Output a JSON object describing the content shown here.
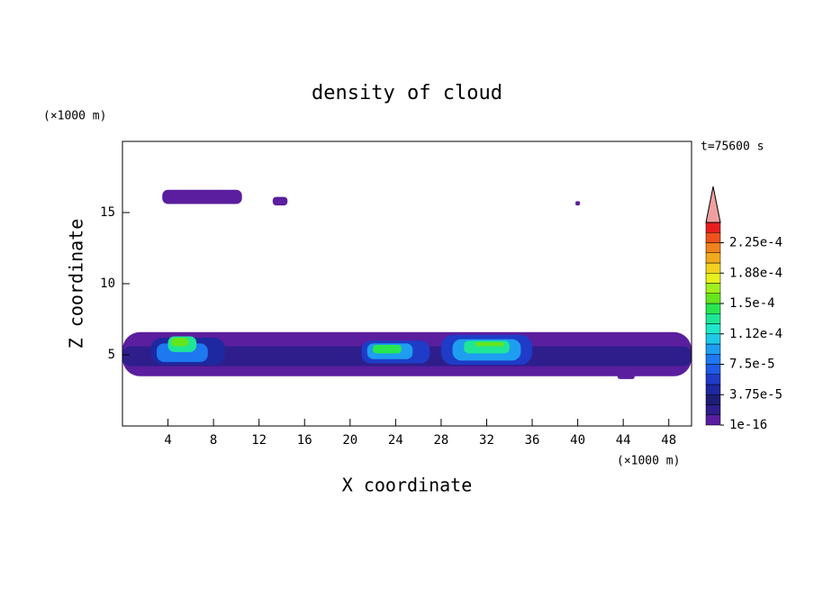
{
  "chart_data": {
    "type": "contour",
    "title": "density of cloud",
    "xlabel": "X coordinate",
    "ylabel": "Z coordinate",
    "x_unit": "(×1000 m)",
    "y_unit": "(×1000 m)",
    "time_label": "t=75600 s",
    "xlim": [
      0,
      50
    ],
    "ylim": [
      0,
      20
    ],
    "xticks": [
      4,
      8,
      12,
      16,
      20,
      24,
      28,
      32,
      36,
      40,
      44,
      48
    ],
    "yticks": [
      5,
      10,
      15
    ],
    "colorbar": {
      "lim": [
        0,
        0.00025
      ],
      "step": 1.25e-05,
      "colors": [
        "#5a1e9e",
        "#2e1e8c",
        "#1e1e78",
        "#1e28a0",
        "#1e3cc8",
        "#1e5ae6",
        "#1e78f0",
        "#1e9ef0",
        "#1ec8e6",
        "#1ee6c8",
        "#1ee696",
        "#28e650",
        "#64e61e",
        "#a0f01e",
        "#e6f01e",
        "#f0d21e",
        "#f0aa1e",
        "#f0821e",
        "#f0501e",
        "#e61e1e"
      ],
      "extend_color": "#f0a0a0",
      "ticks": [
        1e-16,
        {
          "value": 3.75e-05,
          "label": "3.75e-5"
        },
        {
          "value": 7.5e-05,
          "label": "7.5e-5"
        },
        {
          "value": 0.0001125,
          "label": "1.12e-4"
        },
        {
          "value": 0.00015,
          "label": "1.5e-4"
        },
        {
          "value": 0.0001875,
          "label": "1.88e-4"
        },
        {
          "value": 0.000225,
          "label": "2.25e-4"
        }
      ]
    },
    "regions": [
      {
        "x": [
          3.5,
          10.5
        ],
        "z": [
          15.6,
          16.6
        ],
        "value": 5e-06
      },
      {
        "x": [
          13.2,
          14.5
        ],
        "z": [
          15.5,
          16.1
        ],
        "value": 5e-06
      },
      {
        "x": [
          39.8,
          40.2
        ],
        "z": [
          15.5,
          15.8
        ],
        "value": 5e-06
      },
      {
        "x": [
          0,
          50
        ],
        "z": [
          3.5,
          6.6
        ],
        "value": 5e-06
      },
      {
        "x": [
          43.5,
          45
        ],
        "z": [
          3.3,
          3.7
        ],
        "value": 5e-06
      },
      {
        "x": [
          0,
          50
        ],
        "z": [
          4.2,
          5.6
        ],
        "value": 2e-05
      },
      {
        "x": [
          2.5,
          9
        ],
        "z": [
          4.3,
          6.2
        ],
        "value": 4e-05
      },
      {
        "x": [
          3,
          7.5
        ],
        "z": [
          4.5,
          5.8
        ],
        "value": 8e-05
      },
      {
        "x": [
          4,
          6.5
        ],
        "z": [
          5.2,
          6.3
        ],
        "value": 0.00013
      },
      {
        "x": [
          4.3,
          5.8
        ],
        "z": [
          5.6,
          6.2
        ],
        "value": 0.00016
      },
      {
        "x": [
          21,
          27
        ],
        "z": [
          4.4,
          6
        ],
        "value": 5e-05
      },
      {
        "x": [
          21.5,
          25.5
        ],
        "z": [
          4.7,
          5.8
        ],
        "value": 9e-05
      },
      {
        "x": [
          22,
          24.5
        ],
        "z": [
          5.1,
          5.7
        ],
        "value": 0.00014
      },
      {
        "x": [
          28,
          36
        ],
        "z": [
          4.3,
          6.4
        ],
        "value": 5e-05
      },
      {
        "x": [
          29,
          35
        ],
        "z": [
          4.6,
          6.1
        ],
        "value": 9e-05
      },
      {
        "x": [
          30,
          34
        ],
        "z": [
          5.1,
          6
        ],
        "value": 0.00013
      },
      {
        "x": [
          31,
          33.5
        ],
        "z": [
          5.6,
          5.9
        ],
        "value": 0.00016
      }
    ]
  }
}
